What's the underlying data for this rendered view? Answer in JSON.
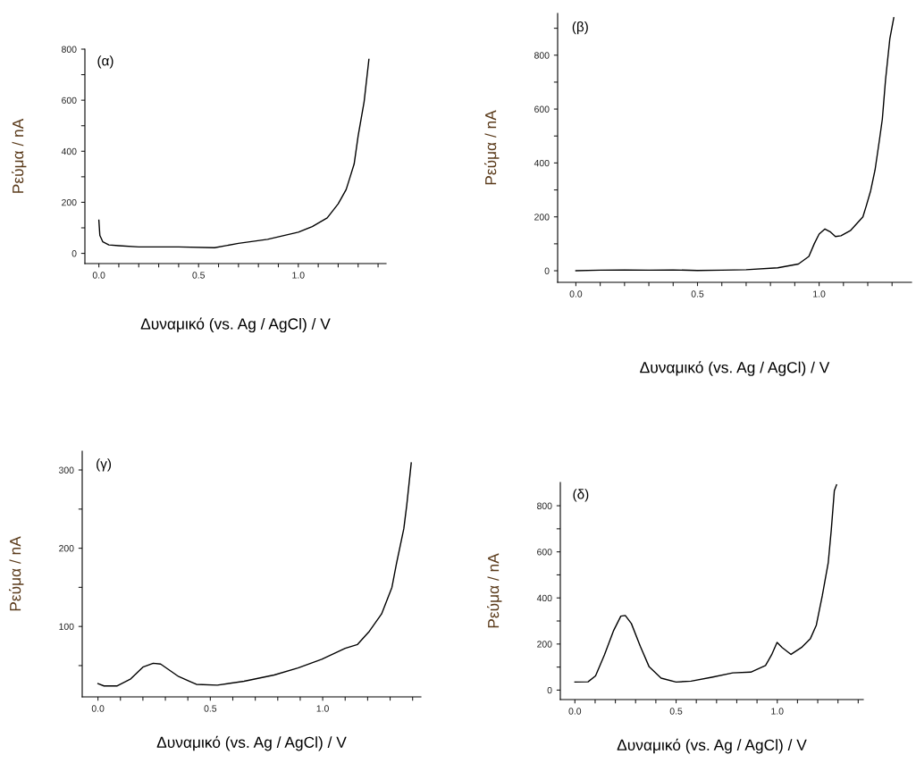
{
  "chart_data": [
    {
      "type": "line",
      "xlabel": "Δυναμικό (vs. Ag / AgCl) / V",
      "ylabel": "Ρεύμα / nA",
      "annotations": [
        "(α)"
      ],
      "xlim": [
        -0.07,
        1.44
      ],
      "ylim": [
        -40,
        800
      ],
      "xticks": [
        {
          "value": 0,
          "label": "0.0"
        },
        {
          "value": 0.1,
          "label": null
        },
        {
          "value": 0.2,
          "label": null
        },
        {
          "value": 0.3,
          "label": null
        },
        {
          "value": 0.4,
          "label": null
        },
        {
          "value": 0.5,
          "label": "0.5"
        },
        {
          "value": 0.6,
          "label": null
        },
        {
          "value": 0.7,
          "label": null
        },
        {
          "value": 0.8,
          "label": null
        },
        {
          "value": 0.9,
          "label": null
        },
        {
          "value": 1.0,
          "label": "1.0"
        },
        {
          "value": 1.1,
          "label": null
        },
        {
          "value": 1.2,
          "label": null
        },
        {
          "value": 1.3,
          "label": null
        },
        {
          "value": 1.4,
          "label": null
        }
      ],
      "yticks": [
        0,
        {
          "value": 100,
          "label": null
        },
        200,
        {
          "value": 300,
          "label": null
        },
        400,
        {
          "value": 500,
          "label": null
        },
        600,
        {
          "value": 700,
          "label": null
        },
        800
      ],
      "grid": false,
      "legend": false,
      "marker": "none",
      "line_style": "solid",
      "series": [
        {
          "color": "#000000",
          "x": [
            0,
            0.005,
            0.02,
            0.05,
            0.1,
            0.2,
            0.3,
            0.4,
            0.58,
            0.7,
            0.846,
            1.0,
            1.07,
            1.145,
            1.2,
            1.24,
            1.26,
            1.28,
            1.3,
            1.33,
            1.354
          ],
          "values": [
            130,
            70,
            45,
            33,
            30,
            25,
            25,
            25,
            22,
            39,
            55,
            83,
            105,
            139,
            194,
            250,
            300,
            350,
            460,
            594,
            760
          ]
        }
      ]
    },
    {
      "type": "line",
      "xlabel": "Δυναμικό (vs. Ag / AgCl) / V",
      "ylabel": "Ρεύμα / nA",
      "annotations": [
        "(β)"
      ],
      "xlim": [
        -0.075,
        1.38
      ],
      "ylim": [
        -43,
        955
      ],
      "xticks": [
        {
          "value": 0,
          "label": "0.0"
        },
        {
          "value": 0.1,
          "label": null
        },
        {
          "value": 0.2,
          "label": null
        },
        {
          "value": 0.3,
          "label": null
        },
        {
          "value": 0.4,
          "label": null
        },
        {
          "value": 0.5,
          "label": "0.5"
        },
        {
          "value": 0.6,
          "label": null
        },
        {
          "value": 0.7,
          "label": null
        },
        {
          "value": 0.8,
          "label": null
        },
        {
          "value": 0.9,
          "label": null
        },
        {
          "value": 1.0,
          "label": "1.0"
        },
        {
          "value": 1.1,
          "label": null
        },
        {
          "value": 1.2,
          "label": null
        },
        {
          "value": 1.3,
          "label": null
        }
      ],
      "yticks": [
        0,
        {
          "value": 100,
          "label": null
        },
        200,
        {
          "value": 300,
          "label": null
        },
        400,
        {
          "value": 500,
          "label": null
        },
        600,
        {
          "value": 700,
          "label": null
        },
        800,
        {
          "value": 900,
          "label": null
        }
      ],
      "grid": false,
      "legend": false,
      "marker": "none",
      "line_style": "solid",
      "series": [
        {
          "color": "#000000",
          "x": [
            0,
            0.1,
            0.2,
            0.3,
            0.4,
            0.5,
            0.6,
            0.7,
            0.83,
            0.915,
            0.958,
            0.98,
            1.0,
            1.024,
            1.045,
            1.067,
            1.09,
            1.13,
            1.15,
            1.18,
            1.194,
            1.212,
            1.23,
            1.248,
            1.26,
            1.273,
            1.291,
            1.307
          ],
          "values": [
            0,
            2,
            3,
            2,
            3,
            1,
            2,
            4,
            11,
            25,
            53,
            100,
            136,
            155,
            145,
            127,
            130,
            150,
            170,
            200,
            241,
            297,
            374,
            485,
            563,
            707,
            862,
            939
          ]
        }
      ]
    },
    {
      "type": "line",
      "xlabel": "Δυναμικό (vs. Ag / AgCl) / V",
      "ylabel": "Ρεύμα / nA",
      "annotations": [
        "(γ)"
      ],
      "xlim": [
        -0.07,
        1.437
      ],
      "ylim": [
        10,
        324
      ],
      "xticks": [
        {
          "value": 0,
          "label": "0.0"
        },
        {
          "value": 0.1,
          "label": null
        },
        {
          "value": 0.2,
          "label": null
        },
        {
          "value": 0.3,
          "label": null
        },
        {
          "value": 0.4,
          "label": null
        },
        {
          "value": 0.5,
          "label": "0.5"
        },
        {
          "value": 0.6,
          "label": null
        },
        {
          "value": 0.7,
          "label": null
        },
        {
          "value": 0.8,
          "label": null
        },
        {
          "value": 0.9,
          "label": null
        },
        {
          "value": 1.0,
          "label": "1.0"
        },
        {
          "value": 1.1,
          "label": null
        },
        {
          "value": 1.2,
          "label": null
        },
        {
          "value": 1.3,
          "label": null
        },
        {
          "value": 1.4,
          "label": null
        }
      ],
      "yticks": [
        {
          "value": 50,
          "label": null
        },
        100,
        {
          "value": 150,
          "label": null
        },
        200,
        {
          "value": 250,
          "label": null
        },
        300
      ],
      "grid": false,
      "legend": false,
      "marker": "none",
      "line_style": "solid",
      "series": [
        {
          "color": "#000000",
          "x": [
            0,
            0.027,
            0.086,
            0.146,
            0.2,
            0.246,
            0.279,
            0.359,
            0.438,
            0.531,
            0.65,
            0.784,
            0.89,
            0.996,
            1.1,
            1.155,
            1.208,
            1.262,
            1.308,
            1.328,
            1.361,
            1.374,
            1.394
          ],
          "values": [
            27,
            24,
            24,
            33,
            48,
            53,
            52,
            36,
            26,
            25,
            30,
            38,
            47,
            58,
            72,
            77,
            94,
            116,
            150,
            180,
            225,
            255,
            309
          ]
        }
      ]
    },
    {
      "type": "line",
      "xlabel": "Δυναμικό (vs. Ag / AgCl) / V",
      "ylabel": "Ρεύμα / nA",
      "annotations": [
        "(δ)"
      ],
      "xlim": [
        -0.072,
        1.425
      ],
      "ylim": [
        -41,
        901
      ],
      "xticks": [
        {
          "value": 0,
          "label": "0.0"
        },
        {
          "value": 0.1,
          "label": null
        },
        {
          "value": 0.2,
          "label": null
        },
        {
          "value": 0.3,
          "label": null
        },
        {
          "value": 0.4,
          "label": null
        },
        {
          "value": 0.5,
          "label": "0.5"
        },
        {
          "value": 0.6,
          "label": null
        },
        {
          "value": 0.7,
          "label": null
        },
        {
          "value": 0.8,
          "label": null
        },
        {
          "value": 0.9,
          "label": null
        },
        {
          "value": 1.0,
          "label": "1.0"
        },
        {
          "value": 1.1,
          "label": null
        },
        {
          "value": 1.2,
          "label": null
        },
        {
          "value": 1.3,
          "label": null
        },
        {
          "value": 1.4,
          "label": null
        }
      ],
      "yticks": [
        0,
        {
          "value": 100,
          "label": null
        },
        200,
        {
          "value": 300,
          "label": null
        },
        400,
        {
          "value": 500,
          "label": null
        },
        600,
        {
          "value": 700,
          "label": null
        },
        800
      ],
      "grid": false,
      "legend": false,
      "marker": "none",
      "line_style": "solid",
      "series": [
        {
          "color": "#000000",
          "x": [
            0,
            0.065,
            0.102,
            0.146,
            0.19,
            0.227,
            0.249,
            0.279,
            0.323,
            0.367,
            0.426,
            0.5,
            0.574,
            0.677,
            0.78,
            0.869,
            0.942,
            0.972,
            0.999,
            1.024,
            1.068,
            1.12,
            1.164,
            1.193,
            1.223,
            1.252,
            1.267,
            1.282,
            1.293
          ],
          "values": [
            35,
            36,
            62,
            153,
            256,
            321,
            324,
            289,
            191,
            101,
            52,
            35,
            39,
            56,
            75,
            78,
            107,
            153,
            207,
            185,
            155,
            185,
            224,
            282,
            412,
            554,
            696,
            865,
            891
          ]
        }
      ]
    }
  ]
}
